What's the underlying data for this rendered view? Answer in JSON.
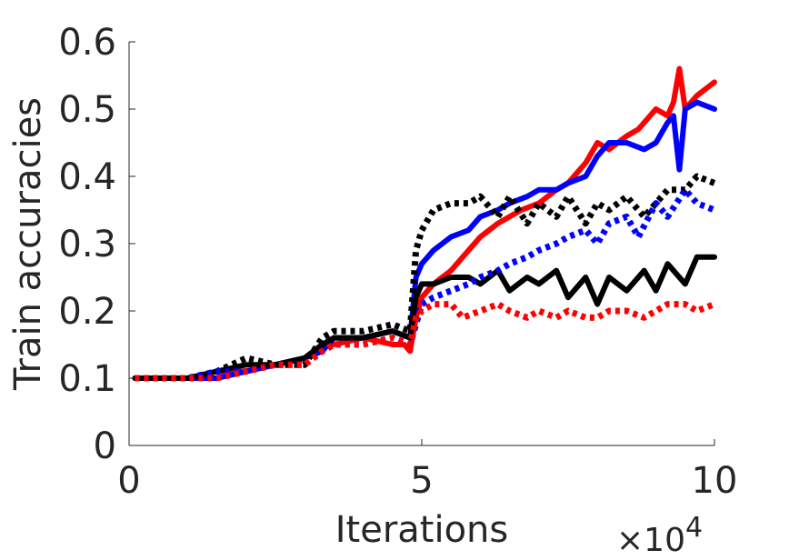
{
  "chart_data": {
    "type": "line",
    "xlabel": "Iterations",
    "ylabel": "Train accuracies",
    "x_multiplier_base": "×10",
    "x_multiplier_exp": "4",
    "xlim": [
      0,
      100000
    ],
    "ylim": [
      0,
      0.6
    ],
    "xticks": [
      0,
      50000,
      100000
    ],
    "xtick_labels": [
      "0",
      "5",
      "10"
    ],
    "yticks": [
      0,
      0.1,
      0.2,
      0.3,
      0.4,
      0.5,
      0.6
    ],
    "ytick_labels": [
      "0",
      "0.1",
      "0.2",
      "0.3",
      "0.4",
      "0.5",
      "0.6"
    ],
    "grid": false,
    "series": [
      {
        "color": "#ff0000",
        "style": "solid",
        "x": [
          1000,
          5000,
          10000,
          15000,
          20000,
          25000,
          30000,
          33000,
          35000,
          40000,
          45000,
          47000,
          48000,
          49000,
          50000,
          52000,
          55000,
          58000,
          60000,
          63000,
          65000,
          67000,
          70000,
          73000,
          75000,
          78000,
          80000,
          82000,
          85000,
          87000,
          90000,
          92000,
          93000,
          94000,
          95000,
          97000,
          100000
        ],
        "y": [
          0.1,
          0.1,
          0.1,
          0.11,
          0.11,
          0.12,
          0.13,
          0.15,
          0.15,
          0.16,
          0.15,
          0.15,
          0.14,
          0.19,
          0.22,
          0.24,
          0.26,
          0.29,
          0.31,
          0.33,
          0.34,
          0.35,
          0.36,
          0.38,
          0.39,
          0.42,
          0.45,
          0.44,
          0.46,
          0.47,
          0.5,
          0.49,
          0.51,
          0.56,
          0.5,
          0.52,
          0.54
        ]
      },
      {
        "color": "#0000ff",
        "style": "solid",
        "x": [
          1000,
          5000,
          10000,
          15000,
          20000,
          25000,
          30000,
          33000,
          35000,
          40000,
          45000,
          48000,
          49000,
          50000,
          52000,
          55000,
          58000,
          60000,
          63000,
          65000,
          68000,
          70000,
          73000,
          75000,
          78000,
          80000,
          82000,
          85000,
          88000,
          90000,
          92000,
          93000,
          94000,
          95000,
          97000,
          100000
        ],
        "y": [
          0.1,
          0.1,
          0.1,
          0.1,
          0.11,
          0.12,
          0.13,
          0.14,
          0.16,
          0.16,
          0.17,
          0.16,
          0.25,
          0.27,
          0.29,
          0.31,
          0.32,
          0.34,
          0.35,
          0.36,
          0.37,
          0.38,
          0.38,
          0.39,
          0.4,
          0.43,
          0.45,
          0.45,
          0.44,
          0.45,
          0.48,
          0.49,
          0.41,
          0.5,
          0.51,
          0.5
        ]
      },
      {
        "color": "#000000",
        "style": "solid",
        "x": [
          1000,
          5000,
          10000,
          15000,
          20000,
          25000,
          30000,
          33000,
          35000,
          40000,
          45000,
          48000,
          49000,
          50000,
          52000,
          55000,
          58000,
          60000,
          63000,
          65000,
          68000,
          70000,
          73000,
          75000,
          78000,
          80000,
          82000,
          85000,
          88000,
          90000,
          92000,
          95000,
          97000,
          100000
        ],
        "y": [
          0.1,
          0.1,
          0.1,
          0.11,
          0.12,
          0.12,
          0.13,
          0.15,
          0.16,
          0.16,
          0.17,
          0.16,
          0.22,
          0.24,
          0.24,
          0.25,
          0.25,
          0.24,
          0.26,
          0.23,
          0.25,
          0.24,
          0.26,
          0.22,
          0.25,
          0.21,
          0.25,
          0.23,
          0.26,
          0.23,
          0.27,
          0.24,
          0.28,
          0.28
        ]
      },
      {
        "color": "#000000",
        "style": "dotted",
        "x": [
          1000,
          5000,
          10000,
          15000,
          20000,
          25000,
          30000,
          33000,
          35000,
          40000,
          45000,
          48000,
          49000,
          50000,
          52000,
          55000,
          58000,
          60000,
          63000,
          65000,
          68000,
          70000,
          73000,
          75000,
          78000,
          80000,
          82000,
          85000,
          88000,
          90000,
          92000,
          95000,
          97000,
          100000
        ],
        "y": [
          0.1,
          0.1,
          0.1,
          0.11,
          0.13,
          0.12,
          0.12,
          0.16,
          0.17,
          0.17,
          0.18,
          0.17,
          0.29,
          0.32,
          0.35,
          0.36,
          0.36,
          0.37,
          0.34,
          0.37,
          0.33,
          0.36,
          0.34,
          0.37,
          0.33,
          0.36,
          0.35,
          0.37,
          0.34,
          0.36,
          0.38,
          0.38,
          0.4,
          0.39
        ]
      },
      {
        "color": "#0000ff",
        "style": "dotted",
        "x": [
          1000,
          5000,
          10000,
          15000,
          20000,
          25000,
          30000,
          33000,
          35000,
          40000,
          45000,
          48000,
          49000,
          50000,
          52000,
          55000,
          58000,
          60000,
          63000,
          65000,
          68000,
          70000,
          73000,
          75000,
          78000,
          80000,
          82000,
          85000,
          87000,
          90000,
          92000,
          95000,
          97000,
          100000
        ],
        "y": [
          0.1,
          0.1,
          0.1,
          0.11,
          0.11,
          0.12,
          0.12,
          0.14,
          0.15,
          0.15,
          0.16,
          0.15,
          0.18,
          0.21,
          0.22,
          0.23,
          0.24,
          0.25,
          0.26,
          0.27,
          0.28,
          0.29,
          0.3,
          0.31,
          0.32,
          0.3,
          0.33,
          0.34,
          0.31,
          0.36,
          0.34,
          0.38,
          0.36,
          0.35
        ]
      },
      {
        "color": "#ff0000",
        "style": "dotted",
        "x": [
          1000,
          5000,
          10000,
          15000,
          20000,
          25000,
          30000,
          33000,
          35000,
          40000,
          45000,
          48000,
          49000,
          50000,
          52000,
          55000,
          57000,
          60000,
          63000,
          65000,
          68000,
          70000,
          73000,
          75000,
          78000,
          80000,
          82000,
          85000,
          88000,
          90000,
          92000,
          95000,
          97000,
          100000
        ],
        "y": [
          0.1,
          0.1,
          0.1,
          0.1,
          0.11,
          0.12,
          0.12,
          0.14,
          0.15,
          0.15,
          0.16,
          0.15,
          0.19,
          0.2,
          0.21,
          0.21,
          0.19,
          0.2,
          0.21,
          0.2,
          0.19,
          0.2,
          0.19,
          0.2,
          0.19,
          0.19,
          0.2,
          0.2,
          0.19,
          0.2,
          0.21,
          0.21,
          0.2,
          0.21
        ]
      }
    ]
  }
}
